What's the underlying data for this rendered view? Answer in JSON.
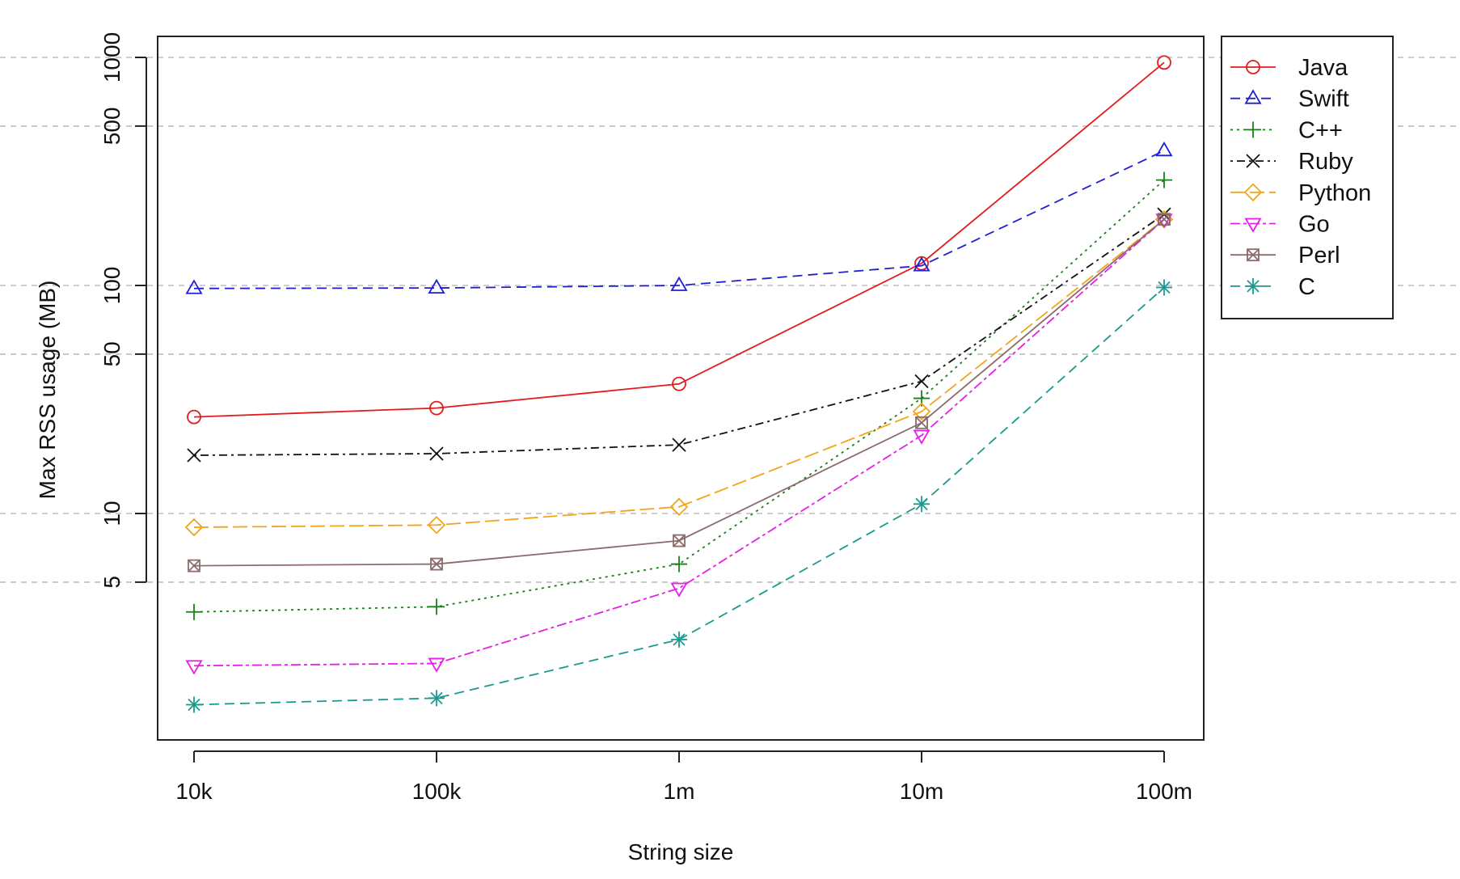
{
  "chart_data": {
    "type": "line",
    "title": "",
    "xlabel": "String size",
    "ylabel": "Max RSS usage (MB)",
    "x": [
      "10k",
      "100k",
      "1m",
      "10m",
      "100m"
    ],
    "y_scale": "log",
    "ylim": [
      1.2,
      1100
    ],
    "y_ticks": [
      {
        "value": 5,
        "label": "5"
      },
      {
        "value": 10,
        "label": "10"
      },
      {
        "value": 50,
        "label": "50"
      },
      {
        "value": 100,
        "label": "100"
      },
      {
        "value": 500,
        "label": "500"
      },
      {
        "value": 1000,
        "label": "1000"
      }
    ],
    "grid": {
      "horizontal": true,
      "dashed": true,
      "values": [
        5,
        10,
        50,
        100,
        500,
        1000
      ]
    },
    "legend_position": "outside right, top",
    "series": [
      {
        "name": "Java",
        "color": "#e41a1c",
        "line": "solid",
        "marker": "circle",
        "values": [
          26.5,
          29,
          37,
          125,
          950
        ]
      },
      {
        "name": "Swift",
        "color": "#1f1fd1",
        "line": "dashed",
        "marker": "triangle-up",
        "values": [
          97,
          97.5,
          100,
          122,
          390
        ]
      },
      {
        "name": "C++",
        "color": "#1a7f1a",
        "line": "dotted",
        "marker": "plus",
        "values": [
          3.7,
          3.9,
          6,
          32,
          290
        ]
      },
      {
        "name": "Ruby",
        "color": "#111111",
        "line": "dotdash",
        "marker": "cross",
        "values": [
          18,
          18.3,
          20,
          38,
          205
        ]
      },
      {
        "name": "Python",
        "color": "#f2a51a",
        "line": "longdash",
        "marker": "diamond",
        "values": [
          8.7,
          8.9,
          10.7,
          28,
          195
        ]
      },
      {
        "name": "Go",
        "color": "#e61ee6",
        "line": "twodash",
        "marker": "triangle-down",
        "values": [
          2.15,
          2.2,
          4.7,
          22,
          195
        ]
      },
      {
        "name": "Perl",
        "color": "#8b6b6b",
        "line": "solid",
        "marker": "square-cross",
        "values": [
          5.9,
          6.0,
          7.6,
          25,
          195
        ]
      },
      {
        "name": "C",
        "color": "#1a9a8f",
        "line": "dashed",
        "marker": "asterisk",
        "values": [
          1.45,
          1.55,
          2.8,
          11,
          98
        ]
      }
    ]
  }
}
